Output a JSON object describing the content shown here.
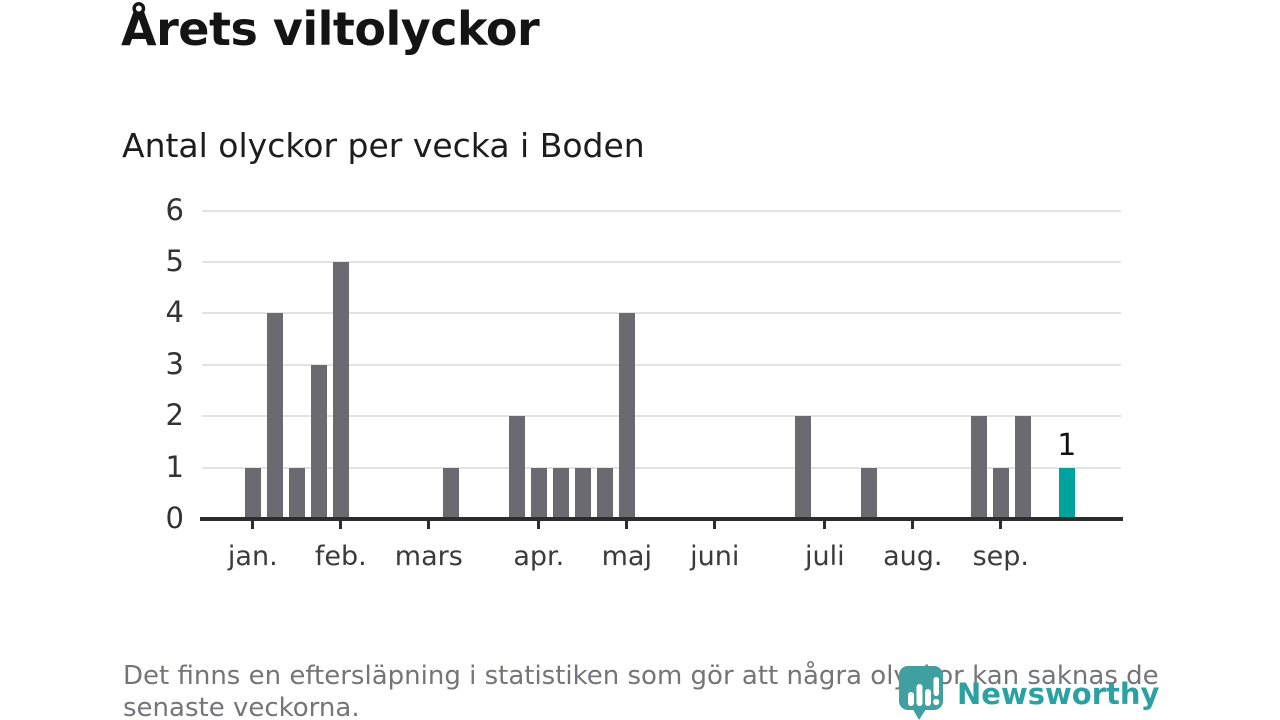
{
  "header": {
    "title": "Årets viltolyckor",
    "subtitle": "Antal olyckor per vecka i Boden"
  },
  "footnote": {
    "line1": "Det finns en eftersläpning i statistiken som gör att några olyckor kan saknas de",
    "line2": "senaste veckorna."
  },
  "logo": {
    "name": "Newsworthy"
  },
  "colors": {
    "bar": "#6b6a71",
    "highlight": "#00a39c",
    "gridline": "#e3e3e3",
    "axis": "#2c2c2c",
    "logo_teal": "#3f9fa1"
  },
  "chart_data": {
    "type": "bar",
    "title": "Årets viltolyckor",
    "subtitle": "Antal olyckor per vecka i Boden",
    "x_unit": "week",
    "values": [
      1,
      4,
      1,
      3,
      5,
      0,
      0,
      0,
      0,
      1,
      0,
      0,
      2,
      1,
      1,
      1,
      1,
      4,
      0,
      0,
      0,
      0,
      0,
      0,
      0,
      2,
      0,
      0,
      1,
      0,
      0,
      0,
      0,
      2,
      1,
      2,
      0,
      1
    ],
    "highlight_last": true,
    "last_value_label": "1",
    "ylim": [
      0,
      6
    ],
    "yticks": [
      0,
      1,
      2,
      3,
      4,
      5,
      6
    ],
    "grid": "horizontal",
    "legend": "none",
    "month_ticks": [
      {
        "label": "jan.",
        "week": 1
      },
      {
        "label": "feb.",
        "week": 5
      },
      {
        "label": "mars",
        "week": 9
      },
      {
        "label": "apr.",
        "week": 14
      },
      {
        "label": "maj",
        "week": 18
      },
      {
        "label": "juni",
        "week": 22
      },
      {
        "label": "juli",
        "week": 27
      },
      {
        "label": "aug.",
        "week": 31
      },
      {
        "label": "sep.",
        "week": 35
      }
    ]
  }
}
